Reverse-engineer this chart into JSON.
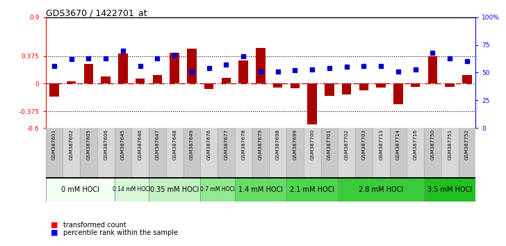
{
  "title": "GDS3670 / 1422701_at",
  "samples": [
    "GSM387601",
    "GSM387602",
    "GSM387605",
    "GSM387606",
    "GSM387645",
    "GSM387646",
    "GSM387647",
    "GSM387648",
    "GSM387649",
    "GSM387676",
    "GSM387677",
    "GSM387678",
    "GSM387679",
    "GSM387698",
    "GSM387699",
    "GSM387700",
    "GSM387701",
    "GSM387702",
    "GSM387703",
    "GSM387713",
    "GSM387714",
    "GSM387716",
    "GSM387750",
    "GSM387751",
    "GSM387752"
  ],
  "red_values": [
    -0.18,
    0.03,
    0.27,
    0.1,
    0.41,
    0.07,
    0.12,
    0.42,
    0.47,
    -0.07,
    0.08,
    0.31,
    0.48,
    -0.05,
    -0.06,
    -0.55,
    -0.17,
    -0.15,
    -0.09,
    -0.05,
    -0.28,
    -0.04,
    0.37,
    -0.04,
    0.12
  ],
  "blue_values": [
    56,
    62,
    63,
    63,
    70,
    56,
    63,
    66,
    51,
    54,
    57,
    65,
    51,
    51,
    52,
    53,
    54,
    55,
    56,
    56,
    51,
    53,
    68,
    63,
    60
  ],
  "dose_groups": [
    {
      "label": "0 mM HOCl",
      "start": 0,
      "end": 4,
      "color": "#f0fff0"
    },
    {
      "label": "0.14 mM HOCl",
      "start": 4,
      "end": 6,
      "color": "#d8f8d8"
    },
    {
      "label": "0.35 mM HOCl",
      "start": 6,
      "end": 9,
      "color": "#c0f0c0"
    },
    {
      "label": "0.7 mM HOCl",
      "start": 9,
      "end": 11,
      "color": "#90e890"
    },
    {
      "label": "1.4 mM HOCl",
      "start": 11,
      "end": 14,
      "color": "#6ade6a"
    },
    {
      "label": "2.1 mM HOCl",
      "start": 14,
      "end": 17,
      "color": "#50d450"
    },
    {
      "label": "2.8 mM HOCl",
      "start": 17,
      "end": 22,
      "color": "#38ca38"
    },
    {
      "label": "3.5 mM HOCl",
      "start": 22,
      "end": 25,
      "color": "#22c022"
    }
  ],
  "ylim_left": [
    -0.6,
    0.9
  ],
  "ylim_right": [
    0,
    100
  ],
  "yticks_left_vals": [
    -0.6,
    -0.375,
    0,
    0.375,
    0.9
  ],
  "yticks_left_labels": [
    "-0.6",
    "-0.375",
    "0",
    "0.375",
    "0.9"
  ],
  "yticks_right_vals": [
    0,
    25,
    50,
    75,
    100
  ],
  "yticks_right_labels": [
    "0",
    "25",
    "50",
    "75",
    "100%"
  ],
  "hlines_dotted": [
    -0.375,
    0.375
  ],
  "bar_color": "#aa0000",
  "dot_color": "#0000cc",
  "zero_line_color": "#cc0000",
  "fig_bg": "#f0f0f0",
  "tick_area_bg": "#d0d0d0",
  "dose_area_bg": "#44cc44"
}
